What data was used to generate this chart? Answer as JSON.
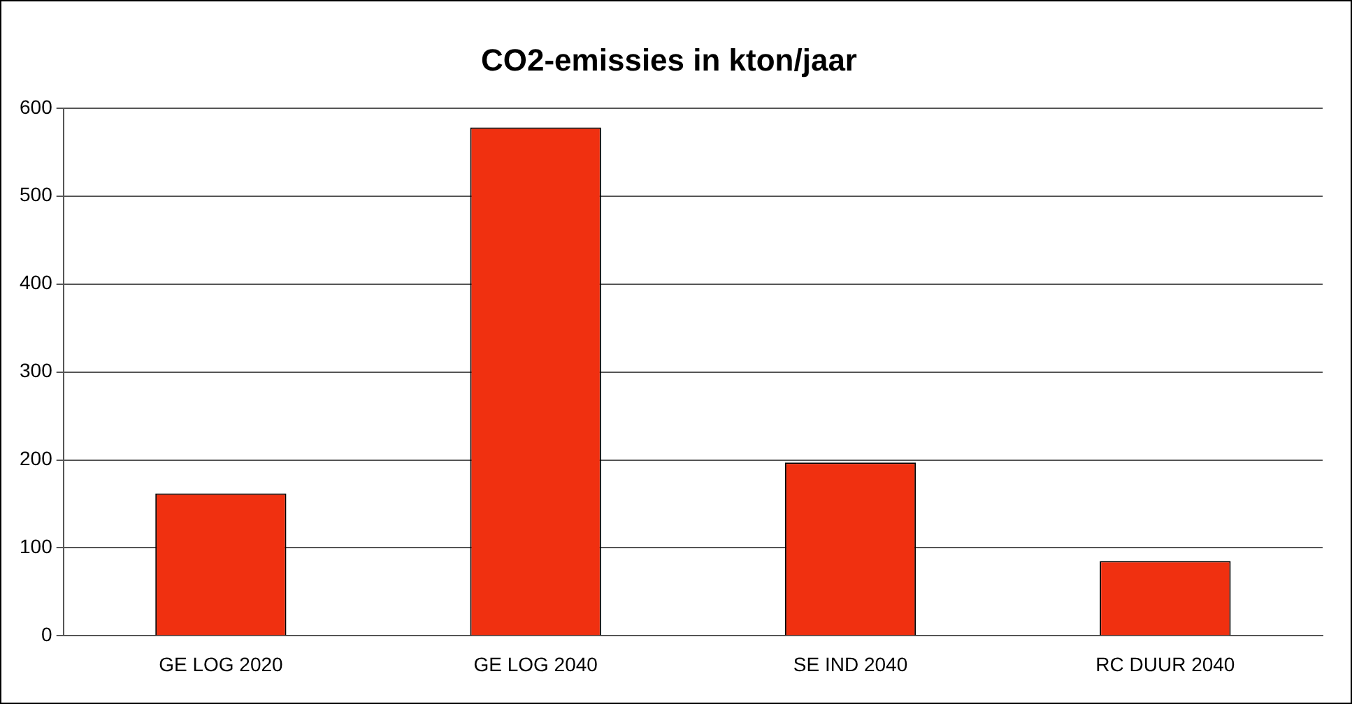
{
  "chart_data": {
    "type": "bar",
    "title": "CO2-emissies in kton/jaar",
    "categories": [
      "GE LOG 2020",
      "GE LOG 2040",
      "SE IND 2040",
      "RC DUUR 2040"
    ],
    "values": [
      162,
      578,
      197,
      85
    ],
    "color": "#f03010",
    "ylim": [
      0,
      600
    ],
    "yticks": [
      0,
      100,
      200,
      300,
      400,
      500,
      600
    ],
    "grid": "y"
  }
}
